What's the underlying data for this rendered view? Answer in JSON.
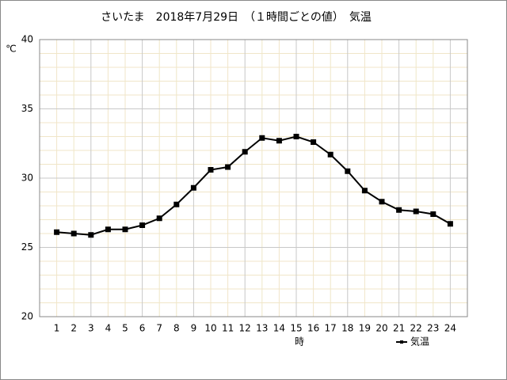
{
  "chart_data": {
    "type": "line",
    "title": "さいたま　2018年7月29日　（１時間ごとの値）　気温",
    "y_unit": "℃",
    "x_label": "時",
    "x": [
      1,
      2,
      3,
      4,
      5,
      6,
      7,
      8,
      9,
      10,
      11,
      12,
      13,
      14,
      15,
      16,
      17,
      18,
      19,
      20,
      21,
      22,
      23,
      24
    ],
    "series": [
      {
        "name": "気温",
        "color": "#000000",
        "values": [
          26.1,
          26.0,
          25.9,
          26.3,
          26.3,
          26.6,
          27.1,
          28.1,
          29.3,
          30.6,
          30.8,
          31.9,
          32.9,
          32.7,
          33.0,
          32.6,
          31.7,
          30.5,
          29.1,
          28.3,
          27.7,
          27.6,
          27.4,
          26.7
        ]
      }
    ],
    "xlim": [
      0,
      25
    ],
    "xticks": [
      1,
      2,
      3,
      4,
      5,
      6,
      7,
      8,
      9,
      10,
      11,
      12,
      13,
      14,
      15,
      16,
      17,
      18,
      19,
      20,
      21,
      22,
      23,
      24
    ],
    "ylim": [
      20,
      40
    ],
    "yticks": [
      20,
      25,
      30,
      35,
      40
    ],
    "grid": true,
    "minor_grid": true
  }
}
